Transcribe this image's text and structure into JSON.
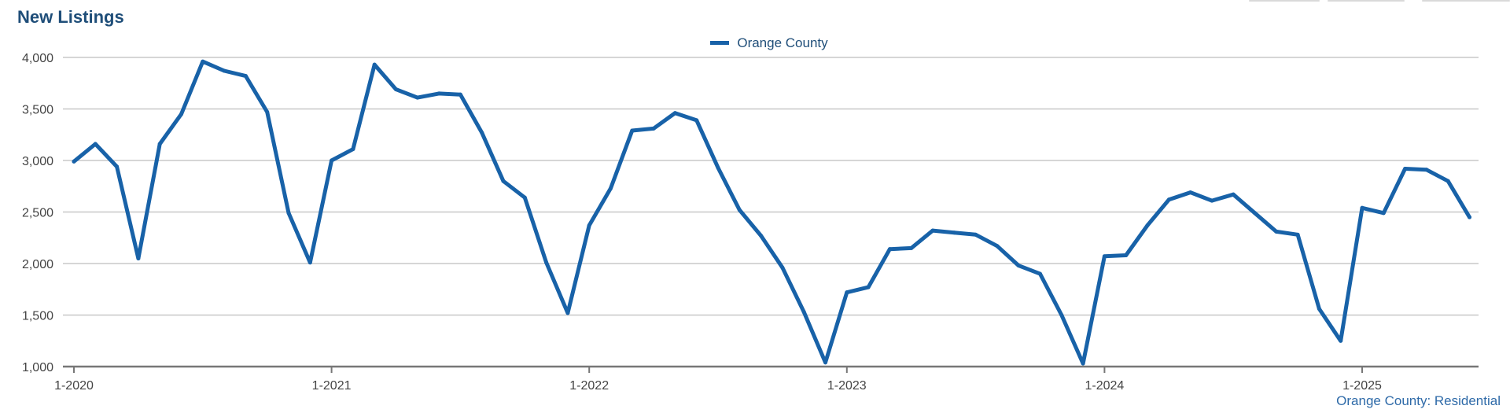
{
  "title": "New Listings",
  "legend_label": "Orange County",
  "source_label": "Orange County: Residential",
  "colors": {
    "series": "#1862a8",
    "title": "#1f4e79",
    "grid": "#c8c8c8",
    "axis": "#777777"
  },
  "chart_data": {
    "type": "line",
    "title": "New Listings",
    "xlabel": "",
    "ylabel": "",
    "ylim": [
      1000,
      4000
    ],
    "y_ticks": [
      1000,
      1500,
      2000,
      2500,
      3000,
      3500,
      4000
    ],
    "y_tick_labels": [
      "1,000",
      "1,500",
      "2,000",
      "2,500",
      "3,000",
      "3,500",
      "4,000"
    ],
    "x_tick_labels": [
      "1-2020",
      "1-2021",
      "1-2022",
      "1-2023",
      "1-2024",
      "1-2025"
    ],
    "x_tick_indices": [
      0,
      12,
      24,
      36,
      48,
      60
    ],
    "grid": true,
    "legend_position": "top-center",
    "series": [
      {
        "name": "Orange County",
        "values": [
          2990,
          3160,
          2940,
          2050,
          3160,
          3450,
          3960,
          3870,
          3820,
          3470,
          2490,
          2010,
          3000,
          3110,
          3930,
          3690,
          3610,
          3650,
          3640,
          3270,
          2800,
          2640,
          2010,
          1520,
          2370,
          2730,
          3290,
          3310,
          3460,
          3390,
          2930,
          2520,
          2270,
          1960,
          1530,
          1040,
          1720,
          1770,
          2140,
          2150,
          2320,
          2300,
          2280,
          2170,
          1980,
          1900,
          1500,
          1030,
          2070,
          2080,
          2370,
          2620,
          2690,
          2610,
          2670,
          2490,
          2310,
          2280,
          1560,
          1250,
          2540,
          2490,
          2920,
          2910,
          2800,
          2450
        ]
      }
    ]
  }
}
